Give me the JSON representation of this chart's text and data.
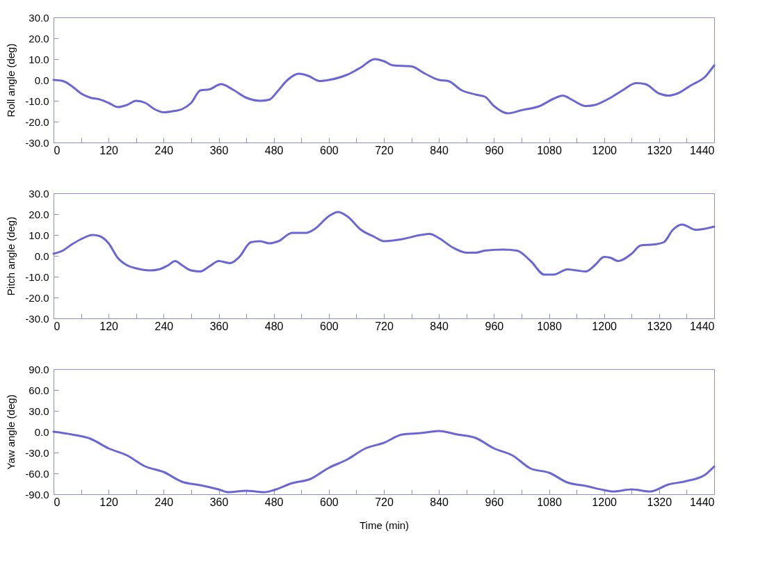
{
  "chart_data": [
    {
      "type": "line",
      "ylabel": "Roll angle (deg)",
      "xlim": [
        0,
        1440
      ],
      "ylim": [
        -30,
        30
      ],
      "yticks": [
        {
          "value": -30,
          "label": "-30.0"
        },
        {
          "value": -20,
          "label": "-20.0"
        },
        {
          "value": -10,
          "label": "-10.0"
        },
        {
          "value": 0,
          "label": "0.0"
        },
        {
          "value": 10,
          "label": "10.0"
        },
        {
          "value": 20,
          "label": "20.0"
        },
        {
          "value": 30,
          "label": "30.0"
        }
      ],
      "xticks": [
        0,
        {
          "value": 60,
          "label": null
        },
        120,
        {
          "value": 180,
          "label": null
        },
        240,
        {
          "value": 300,
          "label": null
        },
        360,
        {
          "value": 420,
          "label": null
        },
        480,
        {
          "value": 540,
          "label": null
        },
        600,
        {
          "value": 660,
          "label": null
        },
        720,
        {
          "value": 780,
          "label": null
        },
        840,
        {
          "value": 900,
          "label": null
        },
        960,
        {
          "value": 1020,
          "label": null
        },
        1080,
        {
          "value": 1140,
          "label": null
        },
        1200,
        {
          "value": 1260,
          "label": null
        },
        1320,
        {
          "value": 1380,
          "label": null
        },
        1440
      ],
      "grid": false,
      "marker": "none",
      "series": [
        {
          "color": "#6a66d6",
          "x": [
            0,
            20,
            40,
            60,
            80,
            100,
            120,
            140,
            160,
            180,
            200,
            220,
            240,
            260,
            280,
            300,
            320,
            340,
            365,
            390,
            420,
            450,
            470,
            490,
            510,
            535,
            555,
            580,
            600,
            640,
            670,
            700,
            720,
            740,
            780,
            810,
            840,
            860,
            890,
            920,
            940,
            960,
            990,
            1020,
            1060,
            1090,
            1110,
            1130,
            1160,
            1180,
            1210,
            1240,
            1270,
            1290,
            1320,
            1340,
            1360,
            1390,
            1420,
            1440
          ],
          "values": [
            0,
            -0.5,
            -3,
            -6.5,
            -8.5,
            -9.3,
            -11,
            -13,
            -12,
            -10,
            -11,
            -14,
            -15.5,
            -15,
            -14,
            -11,
            -5,
            -4.5,
            -2,
            -4.5,
            -8.5,
            -10,
            -9.5,
            -5,
            0,
            3,
            2,
            -0.5,
            0,
            2.5,
            6,
            10,
            9,
            7,
            6.5,
            3,
            0,
            -0.5,
            -5,
            -7,
            -8,
            -12.5,
            -16,
            -14.5,
            -12.5,
            -9,
            -7.5,
            -9.5,
            -12.5,
            -12,
            -9,
            -5,
            -1.5,
            -2,
            -6.5,
            -7.5,
            -6.5,
            -2.5,
            1.5,
            7
          ]
        }
      ]
    },
    {
      "type": "line",
      "ylabel": "Pitch angle (deg)",
      "xlim": [
        0,
        1440
      ],
      "ylim": [
        -30,
        30
      ],
      "yticks": [
        {
          "value": -30,
          "label": "-30.0"
        },
        {
          "value": -20,
          "label": "-20.0"
        },
        {
          "value": -10,
          "label": "-10.0"
        },
        {
          "value": 0,
          "label": "0.0"
        },
        {
          "value": 10,
          "label": "10.0"
        },
        {
          "value": 20,
          "label": "20.0"
        },
        {
          "value": 30,
          "label": "30.0"
        }
      ],
      "xticks": [
        0,
        {
          "value": 60,
          "label": null
        },
        120,
        {
          "value": 180,
          "label": null
        },
        240,
        {
          "value": 300,
          "label": null
        },
        360,
        {
          "value": 420,
          "label": null
        },
        480,
        {
          "value": 540,
          "label": null
        },
        600,
        {
          "value": 660,
          "label": null
        },
        720,
        {
          "value": 780,
          "label": null
        },
        840,
        {
          "value": 900,
          "label": null
        },
        960,
        {
          "value": 1020,
          "label": null
        },
        1080,
        {
          "value": 1140,
          "label": null
        },
        1200,
        {
          "value": 1260,
          "label": null
        },
        1320,
        {
          "value": 1380,
          "label": null
        },
        1440
      ],
      "grid": false,
      "marker": "none",
      "series": [
        {
          "color": "#6a66d6",
          "x": [
            0,
            20,
            40,
            60,
            85,
            100,
            120,
            140,
            160,
            180,
            210,
            230,
            250,
            265,
            280,
            300,
            320,
            340,
            360,
            385,
            405,
            430,
            450,
            470,
            490,
            520,
            550,
            570,
            600,
            620,
            640,
            670,
            700,
            720,
            760,
            800,
            820,
            840,
            870,
            900,
            920,
            940,
            980,
            1010,
            1040,
            1070,
            1090,
            1120,
            1140,
            1160,
            1180,
            1200,
            1215,
            1230,
            1260,
            1280,
            1310,
            1330,
            1350,
            1370,
            1400,
            1420,
            1440
          ],
          "values": [
            1,
            2.5,
            5.5,
            8,
            10,
            9.5,
            6,
            -1,
            -4.5,
            -6,
            -7,
            -6.5,
            -4.5,
            -2.5,
            -4.5,
            -7,
            -7.5,
            -5,
            -2.5,
            -3.5,
            -0.5,
            6.5,
            7,
            6,
            7,
            11,
            11,
            13,
            19,
            21,
            19,
            12.5,
            9,
            7,
            8,
            10,
            10.5,
            8.5,
            4,
            1.5,
            1.5,
            2.5,
            3,
            2.5,
            -2.5,
            -9,
            -9,
            -6.5,
            -7,
            -7.5,
            -4.5,
            -0.5,
            -1,
            -2.5,
            1,
            5,
            5.5,
            6.5,
            12.5,
            15,
            12.5,
            13,
            14
          ]
        }
      ]
    },
    {
      "type": "line",
      "ylabel": "Yaw angle (deg)",
      "xlabel": "Time (min)",
      "xlim": [
        0,
        1440
      ],
      "ylim": [
        -90,
        90
      ],
      "yticks": [
        {
          "value": -90,
          "label": "-90.0"
        },
        {
          "value": -60,
          "label": "-60.0"
        },
        {
          "value": -30,
          "label": "-30.0"
        },
        {
          "value": 0,
          "label": "0.0"
        },
        {
          "value": 30,
          "label": "30.0"
        },
        {
          "value": 60,
          "label": "60.0"
        },
        {
          "value": 90,
          "label": "90.0"
        }
      ],
      "xticks": [
        0,
        {
          "value": 60,
          "label": null
        },
        120,
        {
          "value": 180,
          "label": null
        },
        240,
        {
          "value": 300,
          "label": null
        },
        360,
        {
          "value": 420,
          "label": null
        },
        480,
        {
          "value": 540,
          "label": null
        },
        600,
        {
          "value": 660,
          "label": null
        },
        720,
        {
          "value": 780,
          "label": null
        },
        840,
        {
          "value": 900,
          "label": null
        },
        960,
        {
          "value": 1020,
          "label": null
        },
        1080,
        {
          "value": 1140,
          "label": null
        },
        1200,
        {
          "value": 1260,
          "label": null
        },
        1320,
        {
          "value": 1380,
          "label": null
        },
        1440
      ],
      "grid": false,
      "marker": "none",
      "series": [
        {
          "color": "#6a66d6",
          "x": [
            0,
            40,
            80,
            120,
            160,
            200,
            240,
            280,
            320,
            360,
            380,
            420,
            460,
            480,
            520,
            560,
            600,
            640,
            680,
            720,
            760,
            800,
            840,
            880,
            920,
            960,
            1000,
            1040,
            1080,
            1120,
            1160,
            1200,
            1220,
            1260,
            1300,
            1340,
            1380,
            1420,
            1440
          ],
          "values": [
            0,
            -4,
            -10,
            -24,
            -34,
            -50,
            -58,
            -72,
            -77,
            -83,
            -87,
            -85,
            -87,
            -84,
            -74,
            -68,
            -52,
            -40,
            -24,
            -16,
            -4,
            -2,
            1,
            -4,
            -9,
            -24,
            -34,
            -53,
            -59,
            -73,
            -78,
            -84,
            -86,
            -83,
            -86,
            -76,
            -71,
            -62,
            -50
          ]
        }
      ]
    }
  ]
}
